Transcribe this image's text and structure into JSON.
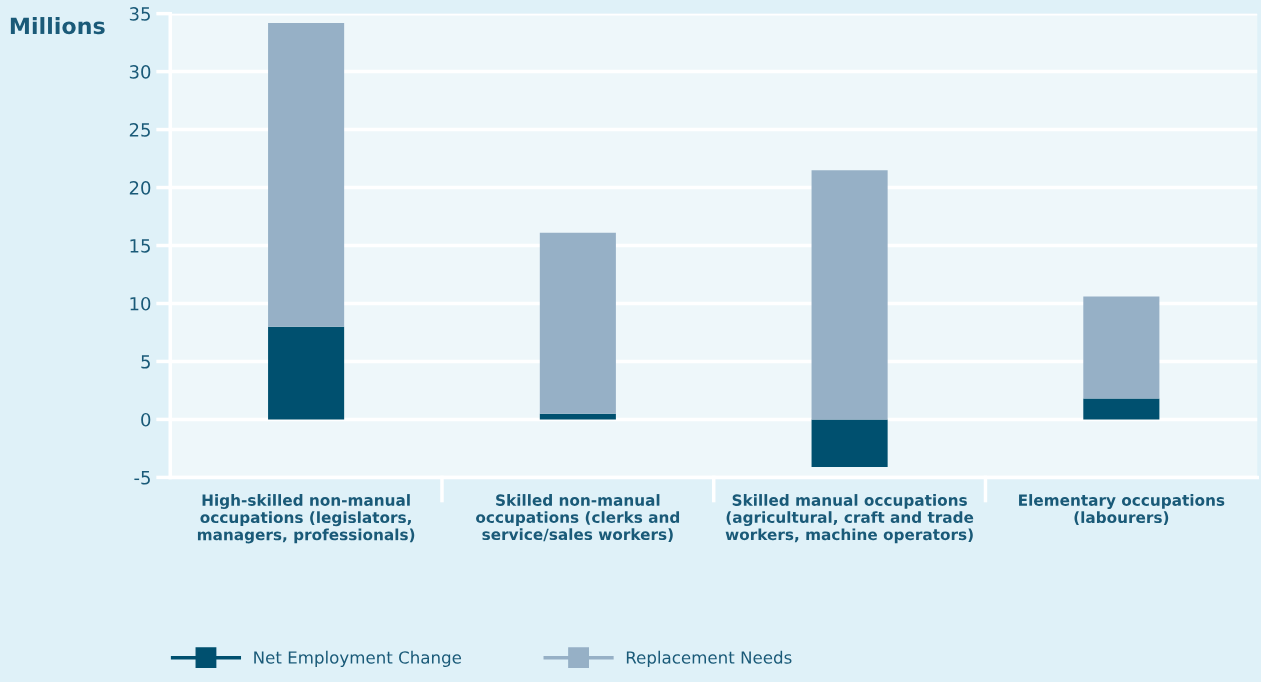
{
  "chart_data": {
    "type": "bar",
    "stacked": true,
    "ylabel": "Millions",
    "categories": [
      "High-skilled non-manual\noccupations (legislators,\nmanagers, professionals)",
      "Skilled non-manual\noccupations (clerks and\nservice/sales workers)",
      "Skilled manual occupations\n(agricultural, craft and trade\nworkers, machine operators)",
      "Elementary occupations\n(labourers)"
    ],
    "series": [
      {
        "name": "Net Employment Change",
        "color": "#00506f",
        "values": [
          8.0,
          0.5,
          -4.1,
          1.8
        ]
      },
      {
        "name": "Replacement Needs",
        "color": "#96b0c6",
        "values": [
          26.2,
          15.6,
          21.5,
          8.8
        ]
      }
    ],
    "ylim": [
      -5,
      35
    ],
    "yticks": [
      -5,
      0,
      5,
      10,
      15,
      20,
      25,
      30,
      35
    ],
    "grid": "y",
    "legend": "bottom left"
  }
}
